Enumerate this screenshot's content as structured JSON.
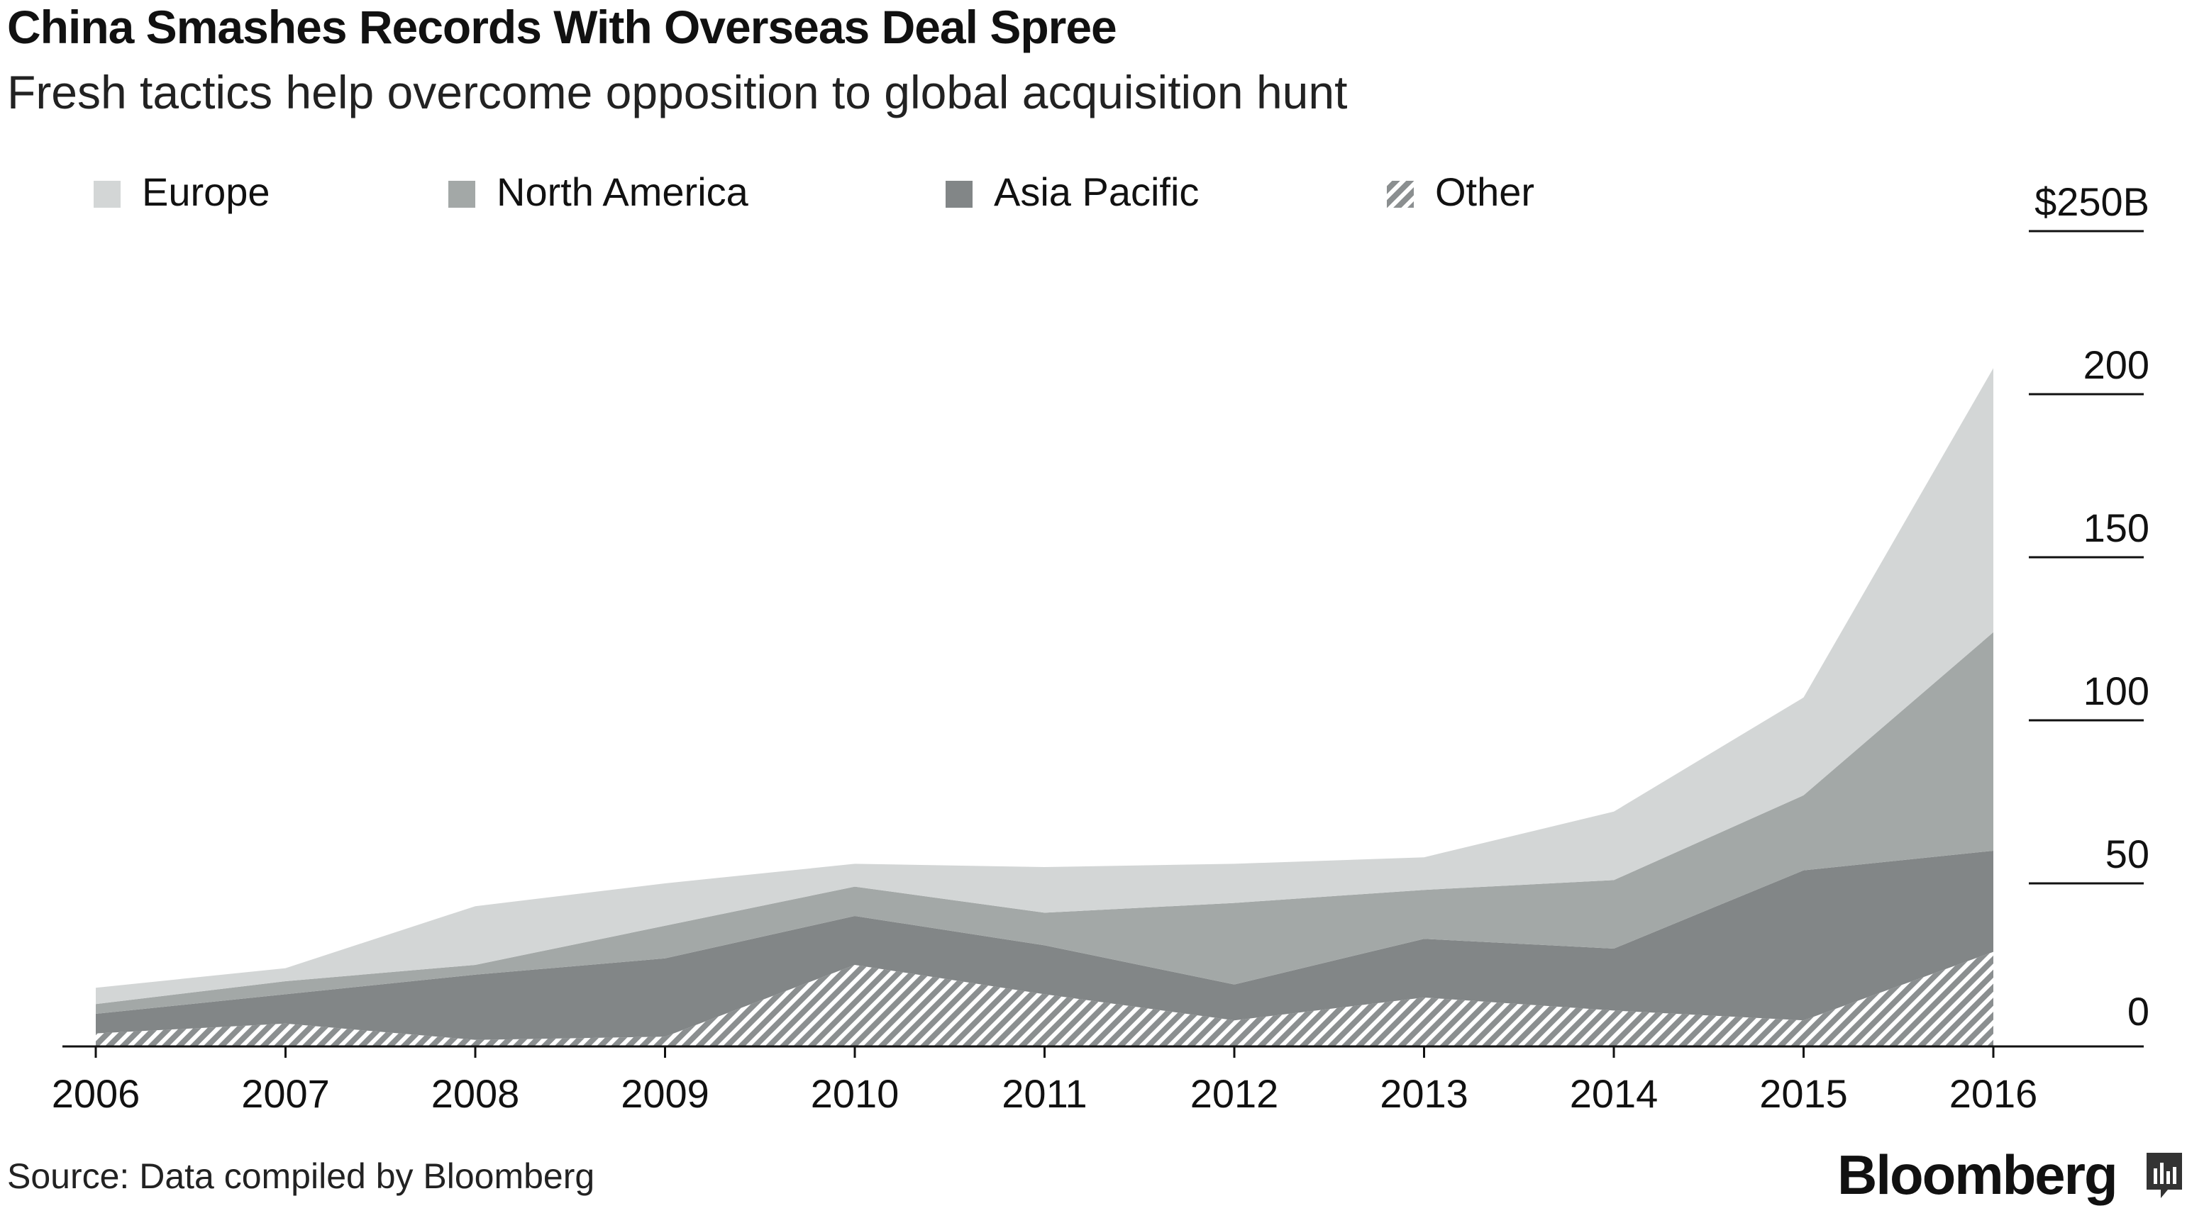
{
  "header": {
    "title": "China Smashes Records With Overseas Deal Spree",
    "subtitle": "Fresh tactics help overcome opposition to global acquisition hunt"
  },
  "footer": {
    "source": "Source: Data compiled by Bloomberg",
    "brand": "Bloomberg"
  },
  "colors": {
    "europe": "#d3d6d6",
    "north_america": "#a3a8a7",
    "asia_pacific": "#828687",
    "other_stripe": "#dcdcdc",
    "axis": "#111111"
  },
  "icons": {
    "brand": "bloomberg-terminal-icon"
  },
  "chart_data": {
    "type": "area",
    "stacked": true,
    "title": "China Smashes Records With Overseas Deal Spree",
    "subtitle": "Fresh tactics help overcome opposition to global acquisition hunt",
    "x": [
      "2006",
      "2007",
      "2008",
      "2009",
      "2010",
      "2011",
      "2012",
      "2013",
      "2014",
      "2015",
      "2016"
    ],
    "series": [
      {
        "name": "Other",
        "key": "other",
        "values": [
          4,
          7,
          2,
          3,
          25,
          16,
          8,
          15,
          11,
          8,
          29
        ]
      },
      {
        "name": "Asia Pacific",
        "key": "asia_pacific",
        "values": [
          6,
          9,
          20,
          24,
          15,
          15,
          11,
          18,
          19,
          46,
          31
        ]
      },
      {
        "name": "North America",
        "key": "north_america",
        "values": [
          3,
          4,
          3,
          10,
          9,
          10,
          25,
          15,
          21,
          23,
          67
        ]
      },
      {
        "name": "Europe",
        "key": "europe",
        "values": [
          5,
          4,
          18,
          13,
          7,
          14,
          12,
          10,
          21,
          30,
          81
        ]
      }
    ],
    "legend": [
      "Europe",
      "North America",
      "Asia Pacific",
      "Other"
    ],
    "ylim": [
      0,
      250
    ],
    "yticks": [
      {
        "value": 250,
        "label": "$250B"
      },
      {
        "value": 200,
        "label": "200"
      },
      {
        "value": 150,
        "label": "150"
      },
      {
        "value": 100,
        "label": "100"
      },
      {
        "value": 50,
        "label": "50"
      },
      {
        "value": 0,
        "label": "0"
      }
    ],
    "xlabel": "",
    "ylabel": "",
    "legend_position": "top"
  }
}
